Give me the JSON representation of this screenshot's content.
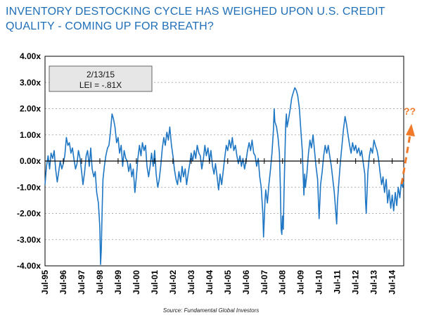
{
  "title_lines": [
    "INVENTORY DESTOCKING CYCLE HAS WEIGHED UPON U.S. CREDIT",
    "QUALITY - COMING UP FOR BREATH?"
  ],
  "annotation": {
    "date": "2/13/15",
    "value": "LEI = -.81X"
  },
  "forecast_label": "??",
  "source": "Source: Fundamental Global Investors",
  "colors": {
    "title": "#1f6fb8",
    "series": "#1f77c4",
    "arrow": "#f07a2a",
    "gridline": "#b0b0b0"
  },
  "chart_data": {
    "type": "line",
    "title": "INVENTORY DESTOCKING CYCLE HAS WEIGHED UPON U.S. CREDIT QUALITY - COMING UP FOR BREATH?",
    "xlabel": "",
    "ylabel": "",
    "ylim": [
      -4.0,
      4.0
    ],
    "xlim": [
      1995.5,
      2015.13
    ],
    "y_ticks": [
      "4.00x",
      "3.00x",
      "2.00x",
      "1.00x",
      "0.00x",
      "-1.00x",
      "-2.00x",
      "-3.00x",
      "-4.00x"
    ],
    "y_tick_values": [
      4,
      3,
      2,
      1,
      0,
      -1,
      -2,
      -3,
      -4
    ],
    "x_ticks": [
      "Jul-95",
      "Jul-96",
      "Jul-97",
      "Jul-98",
      "Jul-99",
      "Jul-00",
      "Jul-01",
      "Jul-02",
      "Jul-03",
      "Jul-04",
      "Jul-05",
      "Jul-06",
      "Jul-07",
      "Jul-08",
      "Jul-09",
      "Jul-10",
      "Jul-11",
      "Jul-12",
      "Jul-13",
      "Jul-14"
    ],
    "x_tick_values": [
      1995.5,
      1996.5,
      1997.5,
      1998.5,
      1999.5,
      2000.5,
      2001.5,
      2002.5,
      2003.5,
      2004.5,
      2005.5,
      2006.5,
      2007.5,
      2008.5,
      2009.5,
      2010.5,
      2011.5,
      2012.5,
      2013.5,
      2014.5
    ],
    "gridlines": "horizontal dashed",
    "series": [
      {
        "values": [
          [
            1995.5,
            -0.9
          ],
          [
            1995.58,
            -0.2
          ],
          [
            1995.67,
            0.2
          ],
          [
            1995.75,
            -0.3
          ],
          [
            1995.83,
            0.3
          ],
          [
            1995.92,
            0.1
          ],
          [
            1996.0,
            0.4
          ],
          [
            1996.08,
            -0.3
          ],
          [
            1996.17,
            -0.8
          ],
          [
            1996.25,
            -0.4
          ],
          [
            1996.33,
            0.0
          ],
          [
            1996.42,
            -0.3
          ],
          [
            1996.5,
            -0.1
          ],
          [
            1996.58,
            0.2
          ],
          [
            1996.67,
            0.9
          ],
          [
            1996.75,
            0.6
          ],
          [
            1996.83,
            0.7
          ],
          [
            1996.92,
            0.3
          ],
          [
            1997.0,
            0.5
          ],
          [
            1997.08,
            0.1
          ],
          [
            1997.17,
            -0.3
          ],
          [
            1997.25,
            -0.1
          ],
          [
            1997.33,
            0.4
          ],
          [
            1997.42,
            0.1
          ],
          [
            1997.5,
            -0.4
          ],
          [
            1997.58,
            -0.9
          ],
          [
            1997.67,
            -0.4
          ],
          [
            1997.75,
            0.2
          ],
          [
            1997.83,
            0.4
          ],
          [
            1997.92,
            -0.2
          ],
          [
            1998.0,
            0.5
          ],
          [
            1998.08,
            -0.3
          ],
          [
            1998.17,
            -0.6
          ],
          [
            1998.25,
            -0.4
          ],
          [
            1998.33,
            -1.2
          ],
          [
            1998.42,
            -1.6
          ],
          [
            1998.5,
            -2.5
          ],
          [
            1998.54,
            -3.95
          ],
          [
            1998.58,
            -3.4
          ],
          [
            1998.63,
            -1.8
          ],
          [
            1998.67,
            -0.7
          ],
          [
            1998.75,
            -0.2
          ],
          [
            1998.83,
            0.2
          ],
          [
            1998.92,
            0.5
          ],
          [
            1999.0,
            0.6
          ],
          [
            1999.08,
            1.1
          ],
          [
            1999.17,
            1.8
          ],
          [
            1999.25,
            1.6
          ],
          [
            1999.33,
            1.3
          ],
          [
            1999.42,
            0.7
          ],
          [
            1999.5,
            0.9
          ],
          [
            1999.58,
            0.3
          ],
          [
            1999.67,
            0.6
          ],
          [
            1999.75,
            -0.2
          ],
          [
            1999.83,
            0.4
          ],
          [
            1999.92,
            0.1
          ],
          [
            2000.0,
            0.0
          ],
          [
            2000.08,
            -0.4
          ],
          [
            2000.17,
            -0.1
          ],
          [
            2000.25,
            -0.6
          ],
          [
            2000.33,
            -0.3
          ],
          [
            2000.42,
            -1.2
          ],
          [
            2000.5,
            -0.6
          ],
          [
            2000.58,
            0.1
          ],
          [
            2000.67,
            0.6
          ],
          [
            2000.75,
            0.2
          ],
          [
            2000.83,
            0.7
          ],
          [
            2000.92,
            0.4
          ],
          [
            2001.0,
            0.6
          ],
          [
            2001.08,
            -0.2
          ],
          [
            2001.17,
            -0.6
          ],
          [
            2001.25,
            -0.2
          ],
          [
            2001.33,
            0.3
          ],
          [
            2001.42,
            -0.2
          ],
          [
            2001.5,
            0.4
          ],
          [
            2001.58,
            -0.5
          ],
          [
            2001.67,
            -1.0
          ],
          [
            2001.75,
            -0.7
          ],
          [
            2001.83,
            -0.2
          ],
          [
            2001.92,
            0.5
          ],
          [
            2002.0,
            0.9
          ],
          [
            2002.08,
            0.6
          ],
          [
            2002.17,
            1.1
          ],
          [
            2002.25,
            0.8
          ],
          [
            2002.33,
            1.3
          ],
          [
            2002.42,
            0.6
          ],
          [
            2002.5,
            0.2
          ],
          [
            2002.58,
            -0.3
          ],
          [
            2002.67,
            -0.7
          ],
          [
            2002.75,
            -0.9
          ],
          [
            2002.83,
            -0.4
          ],
          [
            2002.92,
            -0.8
          ],
          [
            2003.0,
            -0.2
          ],
          [
            2003.08,
            -0.6
          ],
          [
            2003.17,
            -0.3
          ],
          [
            2003.25,
            -0.9
          ],
          [
            2003.33,
            -0.5
          ],
          [
            2003.42,
            -0.1
          ],
          [
            2003.5,
            0.3
          ],
          [
            2003.58,
            0.0
          ],
          [
            2003.67,
            0.4
          ],
          [
            2003.75,
            0.1
          ],
          [
            2003.83,
            0.6
          ],
          [
            2003.92,
            0.3
          ],
          [
            2004.0,
            0.2
          ],
          [
            2004.08,
            -0.3
          ],
          [
            2004.17,
            0.1
          ],
          [
            2004.25,
            0.6
          ],
          [
            2004.33,
            0.2
          ],
          [
            2004.42,
            0.5
          ],
          [
            2004.5,
            0.0
          ],
          [
            2004.58,
            0.4
          ],
          [
            2004.67,
            -0.2
          ],
          [
            2004.75,
            -0.5
          ],
          [
            2004.83,
            -0.1
          ],
          [
            2004.92,
            -0.6
          ],
          [
            2005.0,
            -1.1
          ],
          [
            2005.08,
            -0.5
          ],
          [
            2005.17,
            -0.9
          ],
          [
            2005.25,
            -0.4
          ],
          [
            2005.33,
            0.1
          ],
          [
            2005.42,
            0.6
          ],
          [
            2005.5,
            0.4
          ],
          [
            2005.58,
            0.8
          ],
          [
            2005.67,
            0.5
          ],
          [
            2005.75,
            0.9
          ],
          [
            2005.83,
            0.4
          ],
          [
            2005.92,
            0.6
          ],
          [
            2006.0,
            0.2
          ],
          [
            2006.08,
            -0.1
          ],
          [
            2006.17,
            0.2
          ],
          [
            2006.25,
            -0.2
          ],
          [
            2006.33,
            0.1
          ],
          [
            2006.42,
            -0.3
          ],
          [
            2006.5,
            0.0
          ],
          [
            2006.58,
            0.4
          ],
          [
            2006.67,
            0.7
          ],
          [
            2006.75,
            0.4
          ],
          [
            2006.83,
            0.8
          ],
          [
            2006.92,
            0.3
          ],
          [
            2007.0,
            0.2
          ],
          [
            2007.08,
            -0.2
          ],
          [
            2007.17,
            0.1
          ],
          [
            2007.25,
            -0.6
          ],
          [
            2007.33,
            -1.0
          ],
          [
            2007.42,
            -2.0
          ],
          [
            2007.46,
            -2.9
          ],
          [
            2007.5,
            -2.2
          ],
          [
            2007.54,
            -1.5
          ],
          [
            2007.58,
            -1.1
          ],
          [
            2007.67,
            -1.6
          ],
          [
            2007.75,
            -0.9
          ],
          [
            2007.83,
            -0.4
          ],
          [
            2007.92,
            0.3
          ],
          [
            2008.0,
            1.2
          ],
          [
            2008.04,
            2.0
          ],
          [
            2008.08,
            1.5
          ],
          [
            2008.17,
            1.3
          ],
          [
            2008.25,
            0.9
          ],
          [
            2008.33,
            0.3
          ],
          [
            2008.38,
            -1.0
          ],
          [
            2008.42,
            -2.6
          ],
          [
            2008.46,
            -2.8
          ],
          [
            2008.5,
            -2.1
          ],
          [
            2008.54,
            -2.6
          ],
          [
            2008.58,
            -1.2
          ],
          [
            2008.63,
            0.2
          ],
          [
            2008.67,
            1.4
          ],
          [
            2008.71,
            1.8
          ],
          [
            2008.75,
            1.3
          ],
          [
            2008.83,
            1.6
          ],
          [
            2008.92,
            2.0
          ],
          [
            2009.0,
            2.4
          ],
          [
            2009.08,
            2.6
          ],
          [
            2009.17,
            2.8
          ],
          [
            2009.25,
            2.7
          ],
          [
            2009.33,
            2.5
          ],
          [
            2009.42,
            2.0
          ],
          [
            2009.5,
            1.2
          ],
          [
            2009.58,
            0.4
          ],
          [
            2009.63,
            -0.6
          ],
          [
            2009.67,
            -1.3
          ],
          [
            2009.71,
            -0.5
          ],
          [
            2009.75,
            -1.0
          ],
          [
            2009.83,
            -0.5
          ],
          [
            2009.92,
            0.3
          ],
          [
            2010.0,
            0.8
          ],
          [
            2010.08,
            0.5
          ],
          [
            2010.17,
            1.0
          ],
          [
            2010.25,
            0.4
          ],
          [
            2010.33,
            -0.2
          ],
          [
            2010.42,
            -0.7
          ],
          [
            2010.46,
            -1.5
          ],
          [
            2010.5,
            -2.2
          ],
          [
            2010.54,
            -1.6
          ],
          [
            2010.58,
            -0.9
          ],
          [
            2010.67,
            -0.4
          ],
          [
            2010.75,
            0.2
          ],
          [
            2010.83,
            0.6
          ],
          [
            2010.92,
            0.3
          ],
          [
            2011.0,
            0.6
          ],
          [
            2011.08,
            0.2
          ],
          [
            2011.17,
            -0.2
          ],
          [
            2011.25,
            -0.7
          ],
          [
            2011.33,
            -1.2
          ],
          [
            2011.42,
            -2.0
          ],
          [
            2011.46,
            -2.4
          ],
          [
            2011.5,
            -1.6
          ],
          [
            2011.58,
            -0.8
          ],
          [
            2011.67,
            0.0
          ],
          [
            2011.75,
            0.6
          ],
          [
            2011.83,
            1.2
          ],
          [
            2011.92,
            1.7
          ],
          [
            2012.0,
            1.4
          ],
          [
            2012.08,
            1.0
          ],
          [
            2012.17,
            0.6
          ],
          [
            2012.25,
            0.3
          ],
          [
            2012.33,
            0.7
          ],
          [
            2012.42,
            0.4
          ],
          [
            2012.5,
            0.6
          ],
          [
            2012.58,
            0.3
          ],
          [
            2012.67,
            0.5
          ],
          [
            2012.75,
            0.2
          ],
          [
            2012.83,
            0.4
          ],
          [
            2012.92,
            -0.1
          ],
          [
            2013.0,
            -0.5
          ],
          [
            2013.04,
            -1.5
          ],
          [
            2013.08,
            -2.0
          ],
          [
            2013.13,
            -1.1
          ],
          [
            2013.17,
            -0.4
          ],
          [
            2013.25,
            0.2
          ],
          [
            2013.33,
            0.5
          ],
          [
            2013.42,
            0.3
          ],
          [
            2013.5,
            0.8
          ],
          [
            2013.58,
            0.6
          ],
          [
            2013.67,
            0.4
          ],
          [
            2013.75,
            0.1
          ],
          [
            2013.83,
            -0.4
          ],
          [
            2013.92,
            -0.9
          ],
          [
            2014.0,
            -0.6
          ],
          [
            2014.08,
            -1.2
          ],
          [
            2014.17,
            -0.7
          ],
          [
            2014.25,
            -1.6
          ],
          [
            2014.33,
            -1.1
          ],
          [
            2014.42,
            -1.8
          ],
          [
            2014.5,
            -1.3
          ],
          [
            2014.58,
            -1.9
          ],
          [
            2014.67,
            -1.2
          ],
          [
            2014.75,
            -1.7
          ],
          [
            2014.83,
            -1.0
          ],
          [
            2014.92,
            -1.4
          ],
          [
            2015.0,
            -0.8
          ],
          [
            2015.08,
            -1.0
          ],
          [
            2015.12,
            -0.81
          ]
        ]
      }
    ]
  }
}
